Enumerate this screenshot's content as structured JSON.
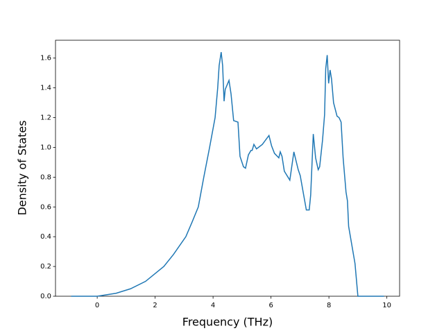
{
  "chart_data": {
    "type": "line",
    "x_label": "Frequency (THz)",
    "y_label": "Density of States",
    "x": [
      -0.9,
      0,
      0.65,
      1.15,
      1.67,
      2.3,
      2.63,
      3.06,
      3.28,
      3.49,
      3.68,
      3.88,
      4.07,
      4.16,
      4.21,
      4.28,
      4.33,
      4.38,
      4.42,
      4.55,
      4.62,
      4.71,
      4.86,
      4.93,
      5.05,
      5.12,
      5.22,
      5.31,
      5.35,
      5.41,
      5.5,
      5.7,
      5.93,
      6.02,
      6.12,
      6.27,
      6.32,
      6.38,
      6.46,
      6.65,
      6.79,
      6.94,
      7.01,
      7.11,
      7.22,
      7.32,
      7.37,
      7.46,
      7.54,
      7.63,
      7.68,
      7.78,
      7.85,
      7.89,
      7.94,
      7.99,
      8.04,
      8.09,
      8.16,
      8.28,
      8.35,
      8.42,
      8.49,
      8.59,
      8.64,
      8.68,
      8.9,
      9.0,
      9.9
    ],
    "series": [
      {
        "color": "#1f77b4",
        "values": [
          0,
          0,
          0.02,
          0.05,
          0.1,
          0.2,
          0.28,
          0.4,
          0.5,
          0.6,
          0.8,
          1.0,
          1.2,
          1.4,
          1.55,
          1.64,
          1.55,
          1.31,
          1.39,
          1.45,
          1.36,
          1.18,
          1.17,
          0.94,
          0.87,
          0.86,
          0.95,
          0.98,
          0.98,
          1.02,
          0.99,
          1.02,
          1.08,
          1.01,
          0.96,
          0.93,
          0.97,
          0.94,
          0.84,
          0.78,
          0.97,
          0.85,
          0.81,
          0.7,
          0.58,
          0.58,
          0.68,
          1.09,
          0.93,
          0.85,
          0.87,
          1.05,
          1.22,
          1.53,
          1.62,
          1.43,
          1.52,
          1.46,
          1.3,
          1.21,
          1.2,
          1.17,
          0.93,
          0.7,
          0.64,
          0.47,
          0.22,
          0,
          0
        ]
      }
    ],
    "xlim": [
      -1.44,
      10.44
    ],
    "ylim": [
      0,
      1.72
    ],
    "xticks": [
      0,
      2,
      4,
      6,
      8,
      10
    ],
    "yticks": [
      {
        "value": 0,
        "label": "0.0"
      },
      0.2,
      0.4,
      0.6,
      0.8,
      {
        "value": 1,
        "label": "1.0"
      },
      1.2,
      1.4,
      1.6
    ]
  }
}
